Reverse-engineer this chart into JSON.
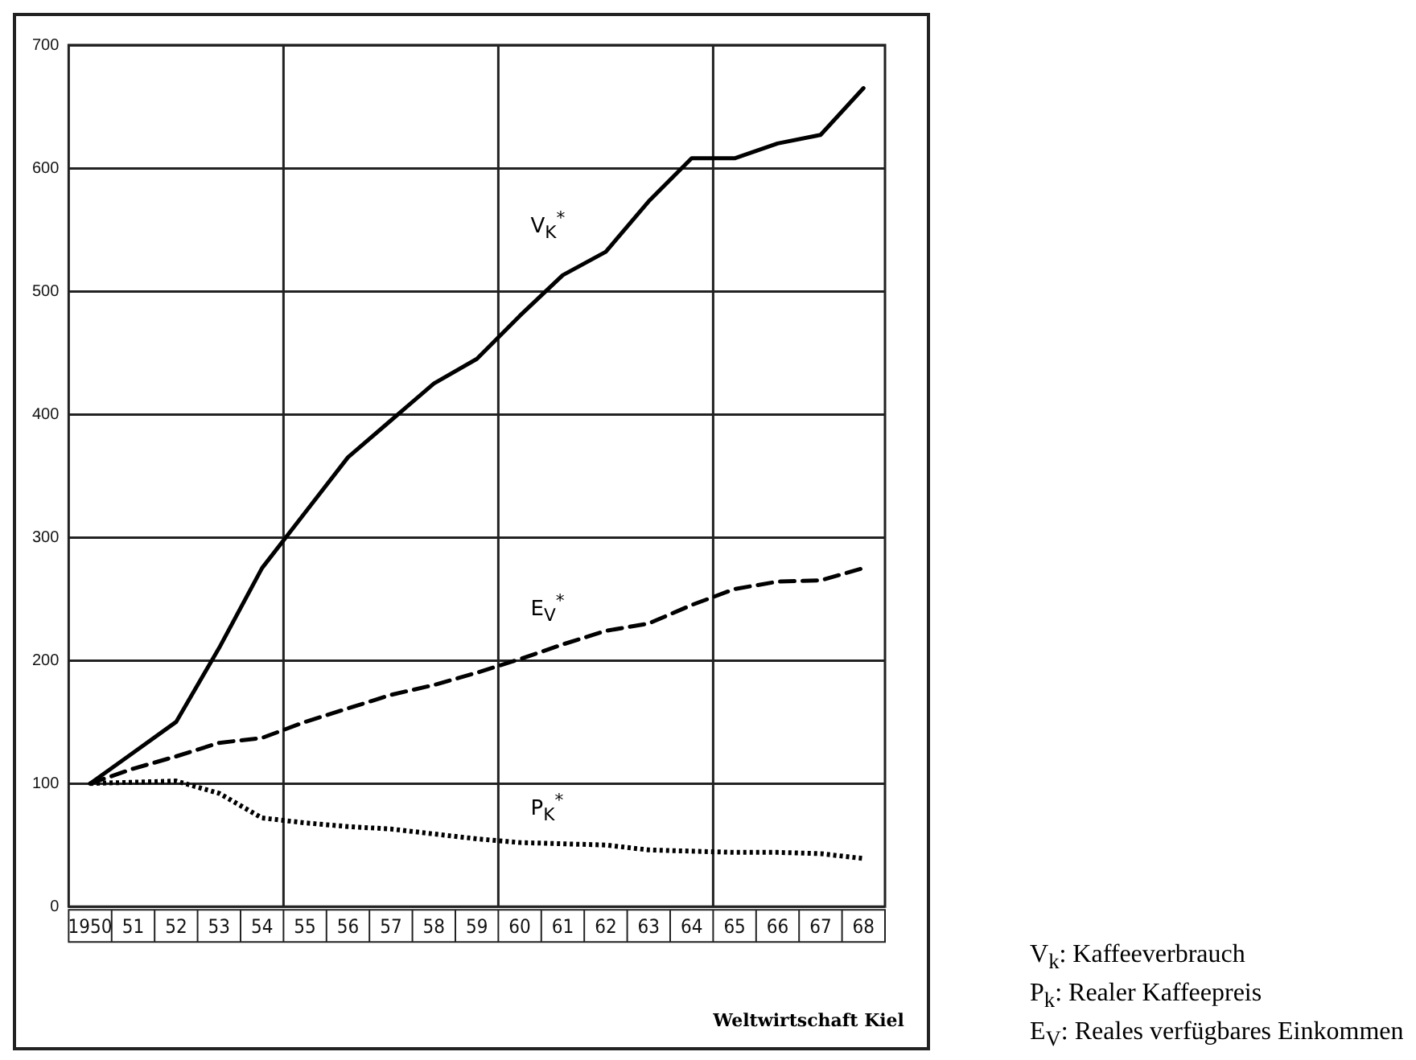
{
  "chart_data": {
    "type": "line",
    "x": [
      1950,
      1951,
      1952,
      1953,
      1954,
      1955,
      1956,
      1957,
      1958,
      1959,
      1960,
      1961,
      1962,
      1963,
      1964,
      1965,
      1966,
      1967,
      1968
    ],
    "xlim": [
      1949.5,
      1968.5
    ],
    "xticks": [
      {
        "value": 1950,
        "label": "1950"
      },
      {
        "value": 1951,
        "label": "51"
      },
      {
        "value": 1952,
        "label": "52"
      },
      {
        "value": 1953,
        "label": "53"
      },
      {
        "value": 1954,
        "label": "54"
      },
      {
        "value": 1955,
        "label": "55"
      },
      {
        "value": 1956,
        "label": "56"
      },
      {
        "value": 1957,
        "label": "57"
      },
      {
        "value": 1958,
        "label": "58"
      },
      {
        "value": 1959,
        "label": "59"
      },
      {
        "value": 1960,
        "label": "60"
      },
      {
        "value": 1961,
        "label": "61"
      },
      {
        "value": 1962,
        "label": "62"
      },
      {
        "value": 1963,
        "label": "63"
      },
      {
        "value": 1964,
        "label": "64"
      },
      {
        "value": 1965,
        "label": "65"
      },
      {
        "value": 1966,
        "label": "66"
      },
      {
        "value": 1967,
        "label": "67"
      },
      {
        "value": 1968,
        "label": "68"
      }
    ],
    "ylim": [
      0,
      700
    ],
    "yticks": [
      0,
      100,
      200,
      300,
      400,
      500,
      600,
      700
    ],
    "grid": "y",
    "legend": false,
    "marker": "none",
    "ref_lines": [
      {
        "axis": "x",
        "value": 1954.5
      },
      {
        "axis": "x",
        "value": 1959.5
      },
      {
        "axis": "x",
        "value": 1964.5
      }
    ],
    "series": [
      {
        "name": "V$_{K}$$^{*}$",
        "color": "#000000",
        "line_style": "solid",
        "values": [
          100,
          125,
          150,
          210,
          275,
          320,
          365,
          395,
          425,
          445,
          480,
          513,
          532,
          573,
          608,
          608,
          620,
          627,
          665
        ]
      },
      {
        "name": "E$_{V}$$^{*}$",
        "color": "#000000",
        "line_style": "dashed",
        "values": [
          100,
          112,
          122,
          133,
          137,
          150,
          161,
          172,
          180,
          190,
          201,
          213,
          224,
          230,
          245,
          258,
          264,
          265,
          275
        ]
      },
      {
        "name": "P$_{K}$$^{*}$",
        "color": "#000000",
        "line_style": "dotted",
        "values": [
          100,
          101,
          102,
          92,
          72,
          68,
          65,
          63,
          59,
          55,
          52,
          51,
          50,
          46,
          45,
          44,
          44,
          43,
          39
        ]
      }
    ],
    "annotations": [
      "Weltwirtschaft Kiel",
      "V$_{k}$: Kaffeeverbrauch",
      "P$_{k}$: Realer Kaffeepreis",
      "E$_{V}$: Reales verfügbares Einkommen"
    ]
  }
}
